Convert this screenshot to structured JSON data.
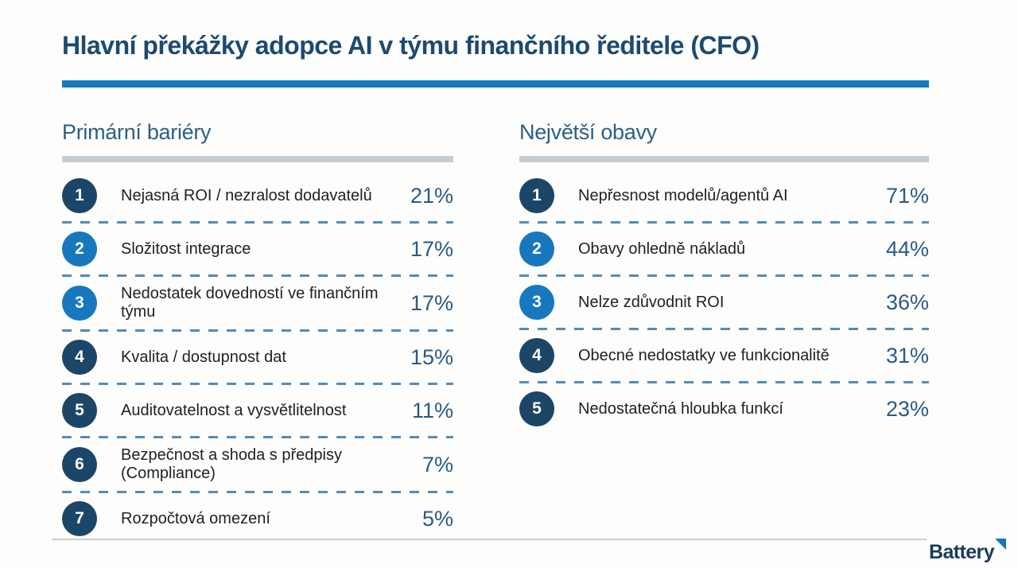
{
  "title": "Hlavní překážky adopce AI v týmu finančního ředitele (CFO)",
  "colors": {
    "accent_blue": "#1878be",
    "navy_badge": "#1b4668",
    "title_navy": "#1d4a70",
    "header_navy": "#2d5f86",
    "percent_navy": "#2a5a86",
    "dash_blue": "#548cb4",
    "header_bar_gray": "#c5ccd3",
    "background": "#fdfdfb"
  },
  "columns": [
    {
      "header": "Primární bariéry",
      "items": [
        {
          "rank": "1",
          "label": "Nejasná ROI / nezralost dodavatelů",
          "value": "21%",
          "badge_color": "navy"
        },
        {
          "rank": "2",
          "label": "Složitost integrace",
          "value": "17%",
          "badge_color": "blue"
        },
        {
          "rank": "3",
          "label": "Nedostatek dovedností ve finančním týmu",
          "value": "17%",
          "badge_color": "blue"
        },
        {
          "rank": "4",
          "label": "Kvalita / dostupnost dat",
          "value": "15%",
          "badge_color": "navy"
        },
        {
          "rank": "5",
          "label": "Auditovatelnost a vysvětlitelnost",
          "value": "11%",
          "badge_color": "navy"
        },
        {
          "rank": "6",
          "label": "Bezpečnost a shoda s předpisy (Compliance)",
          "value": "7%",
          "badge_color": "navy"
        },
        {
          "rank": "7",
          "label": "Rozpočtová omezení",
          "value": "5%",
          "badge_color": "navy"
        }
      ]
    },
    {
      "header": "Největší obavy",
      "items": [
        {
          "rank": "1",
          "label": "Nepřesnost modelů/agentů AI",
          "value": "71%",
          "badge_color": "navy"
        },
        {
          "rank": "2",
          "label": "Obavy ohledně nákladů",
          "value": "44%",
          "badge_color": "blue"
        },
        {
          "rank": "3",
          "label": "Nelze zdůvodnit ROI",
          "value": "36%",
          "badge_color": "blue"
        },
        {
          "rank": "4",
          "label": "Obecné nedostatky ve funkcionalitě",
          "value": "31%",
          "badge_color": "navy"
        },
        {
          "rank": "5",
          "label": "Nedostatečná hloubka funkcí",
          "value": "23%",
          "badge_color": "navy"
        }
      ]
    }
  ],
  "footer": {
    "brand": "Battery"
  },
  "chart_data": [
    {
      "type": "table",
      "title": "Primární bariéry",
      "categories": [
        "Nejasná ROI / nezralost dodavatelů",
        "Složitost integrace",
        "Nedostatek dovedností ve finančním týmu",
        "Kvalita / dostupnost dat",
        "Auditovatelnost a vysvětlitelnost",
        "Bezpečnost a shoda s předpisy (Compliance)",
        "Rozpočtová omezení"
      ],
      "values": [
        21,
        17,
        17,
        15,
        11,
        7,
        5
      ],
      "unit": "%"
    },
    {
      "type": "table",
      "title": "Největší obavy",
      "categories": [
        "Nepřesnost modelů/agentů AI",
        "Obavy ohledně nákladů",
        "Nelze zdůvodnit ROI",
        "Obecné nedostatky ve funkcionalitě",
        "Nedostatečná hloubka funkcí"
      ],
      "values": [
        71,
        44,
        36,
        31,
        23
      ],
      "unit": "%"
    }
  ]
}
